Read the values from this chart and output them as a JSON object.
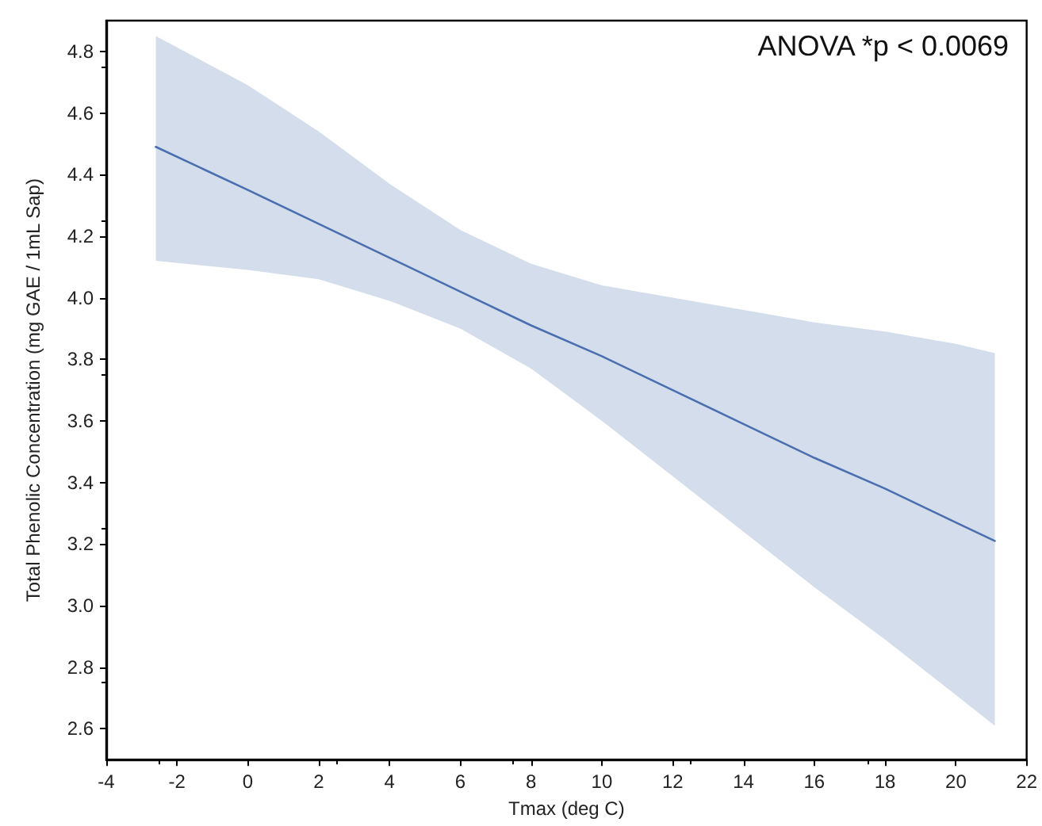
{
  "chart_data": {
    "type": "line",
    "xlabel": "Tmax (deg C)",
    "ylabel": "Total Phenolic Concentration (mg GAE / 1mL Sap)",
    "annotations": [
      "ANOVA *p < 0.0069"
    ],
    "xlim": [
      -4,
      22
    ],
    "xticks": [
      -4,
      -2,
      0,
      2,
      4,
      6,
      8,
      10,
      12,
      14,
      16,
      18,
      20,
      22
    ],
    "ylim": [
      2.5,
      4.9
    ],
    "yticks": [
      2.6,
      2.8,
      {
        "value": 3,
        "label": "3.0"
      },
      3.2,
      3.4,
      3.6,
      3.8,
      {
        "value": 4,
        "label": "4.0"
      },
      4.2,
      4.4,
      4.6,
      4.8
    ],
    "marker": "none",
    "line_style": "solid",
    "series": [
      {
        "color": "#4a6fb0",
        "x": [
          -2.6,
          0,
          2,
          4,
          6,
          8,
          10,
          12,
          14,
          16,
          18,
          20,
          21.1
        ],
        "values": [
          4.49,
          4.35,
          4.24,
          4.13,
          4.02,
          3.91,
          3.81,
          3.7,
          3.59,
          3.48,
          3.38,
          3.27,
          3.21
        ],
        "lower": [
          4.12,
          4.09,
          4.06,
          3.99,
          3.9,
          3.77,
          3.6,
          3.42,
          3.24,
          3.06,
          2.89,
          2.71,
          2.61
        ],
        "upper": [
          4.85,
          4.69,
          4.54,
          4.37,
          4.22,
          4.11,
          4.04,
          4.0,
          3.96,
          3.92,
          3.89,
          3.85,
          3.82
        ]
      }
    ]
  }
}
